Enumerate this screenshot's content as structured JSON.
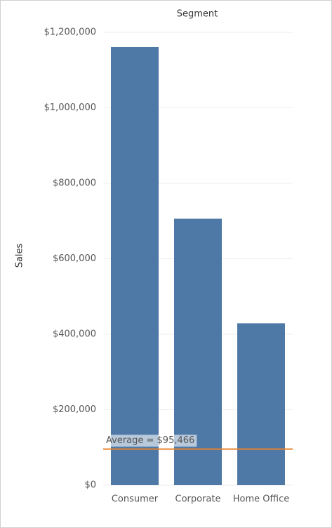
{
  "chart_data": {
    "type": "bar",
    "title": "Segment",
    "y_label": "Sales",
    "categories": [
      "Consumer",
      "Corporate",
      "Home Office"
    ],
    "values": [
      1161000,
      706000,
      429000
    ],
    "color": "#4e79a7",
    "ylim": [
      0,
      1200000
    ],
    "yticks": [
      {
        "value": 0,
        "label": "$0"
      },
      {
        "value": 200000,
        "label": "$200,000"
      },
      {
        "value": 400000,
        "label": "$400,000"
      },
      {
        "value": 600000,
        "label": "$600,000"
      },
      {
        "value": 800000,
        "label": "$800,000"
      },
      {
        "value": 1000000,
        "label": "$1,000,000"
      },
      {
        "value": 1200000,
        "label": "$1,200,000"
      }
    ],
    "grid": true,
    "reference_line": {
      "value": 95466,
      "label": "Average = $95,466",
      "color": "#e8822a"
    }
  }
}
